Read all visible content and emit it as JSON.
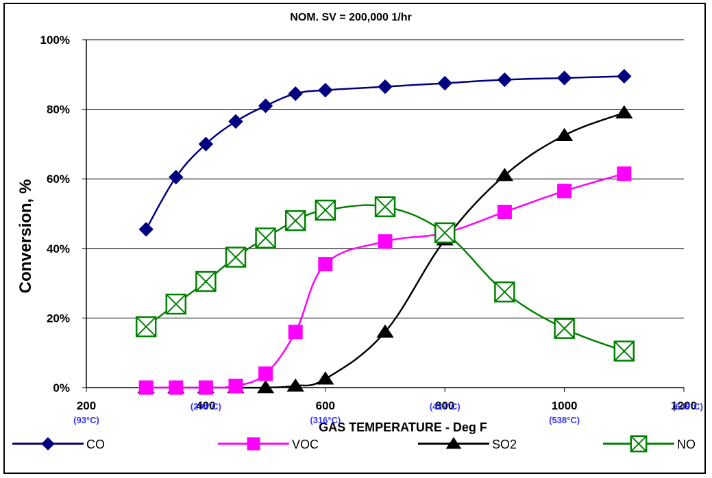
{
  "chart_data": {
    "type": "line",
    "title": "NOM.  SV = 200,000 1/hr",
    "xlabel": "GAS TEMPERATURE   -   Deg F",
    "ylabel": "Conversion, %",
    "xlim": [
      200,
      1200
    ],
    "ylim": [
      0,
      100
    ],
    "x_ticks": [
      200,
      400,
      600,
      800,
      1000,
      1200
    ],
    "x_tick_labels": [
      "200",
      "400",
      "600",
      "800",
      "1000",
      "1200"
    ],
    "y_ticks": [
      0,
      20,
      40,
      60,
      80,
      100
    ],
    "y_tick_labels": [
      "0%",
      "20%",
      "40%",
      "60%",
      "80%",
      "100%"
    ],
    "celsius_ticks": [
      {
        "x": 200,
        "label": "(93°C)"
      },
      {
        "x": 400,
        "label": "(204°C)"
      },
      {
        "x": 600,
        "label": "(316°C)"
      },
      {
        "x": 800,
        "label": "(427°C)"
      },
      {
        "x": 1000,
        "label": "(538°C)"
      },
      {
        "x": 1200,
        "label": "(649°C)"
      }
    ],
    "grid": {
      "horizontal": true,
      "vertical": false
    },
    "legend_position": "bottom",
    "series": [
      {
        "name": "CO",
        "color": "#000080",
        "marker": "diamond",
        "points": [
          [
            300,
            45.5
          ],
          [
            350,
            60.5
          ],
          [
            400,
            70
          ],
          [
            450,
            76.5
          ],
          [
            500,
            81
          ],
          [
            550,
            84.5
          ],
          [
            600,
            85.5
          ],
          [
            700,
            86.5
          ],
          [
            800,
            87.5
          ],
          [
            900,
            88.5
          ],
          [
            1000,
            89
          ],
          [
            1100,
            89.5
          ]
        ]
      },
      {
        "name": "VOC",
        "color": "#ff00ff",
        "marker": "square",
        "points": [
          [
            300,
            0
          ],
          [
            350,
            0
          ],
          [
            400,
            0
          ],
          [
            450,
            0.5
          ],
          [
            500,
            4
          ],
          [
            550,
            16
          ],
          [
            600,
            35.5
          ],
          [
            700,
            42
          ],
          [
            800,
            44.5
          ],
          [
            900,
            50.5
          ],
          [
            1000,
            56.5
          ],
          [
            1100,
            61.5
          ]
        ]
      },
      {
        "name": "SO2",
        "color": "#000000",
        "marker": "triangle",
        "points": [
          [
            300,
            0
          ],
          [
            350,
            0
          ],
          [
            400,
            0
          ],
          [
            450,
            0
          ],
          [
            500,
            0
          ],
          [
            550,
            0.5
          ],
          [
            600,
            2.5
          ],
          [
            700,
            16
          ],
          [
            800,
            42.5
          ],
          [
            900,
            61
          ],
          [
            1000,
            72.5
          ],
          [
            1100,
            79
          ]
        ]
      },
      {
        "name": "NO",
        "color": "#008000",
        "marker": "boxx",
        "points": [
          [
            300,
            17.5
          ],
          [
            350,
            24
          ],
          [
            400,
            30.5
          ],
          [
            450,
            37.5
          ],
          [
            500,
            43
          ],
          [
            550,
            48
          ],
          [
            600,
            51
          ],
          [
            700,
            52
          ],
          [
            800,
            44.5
          ],
          [
            900,
            27.5
          ],
          [
            1000,
            17
          ],
          [
            1100,
            10.5
          ]
        ]
      }
    ]
  }
}
